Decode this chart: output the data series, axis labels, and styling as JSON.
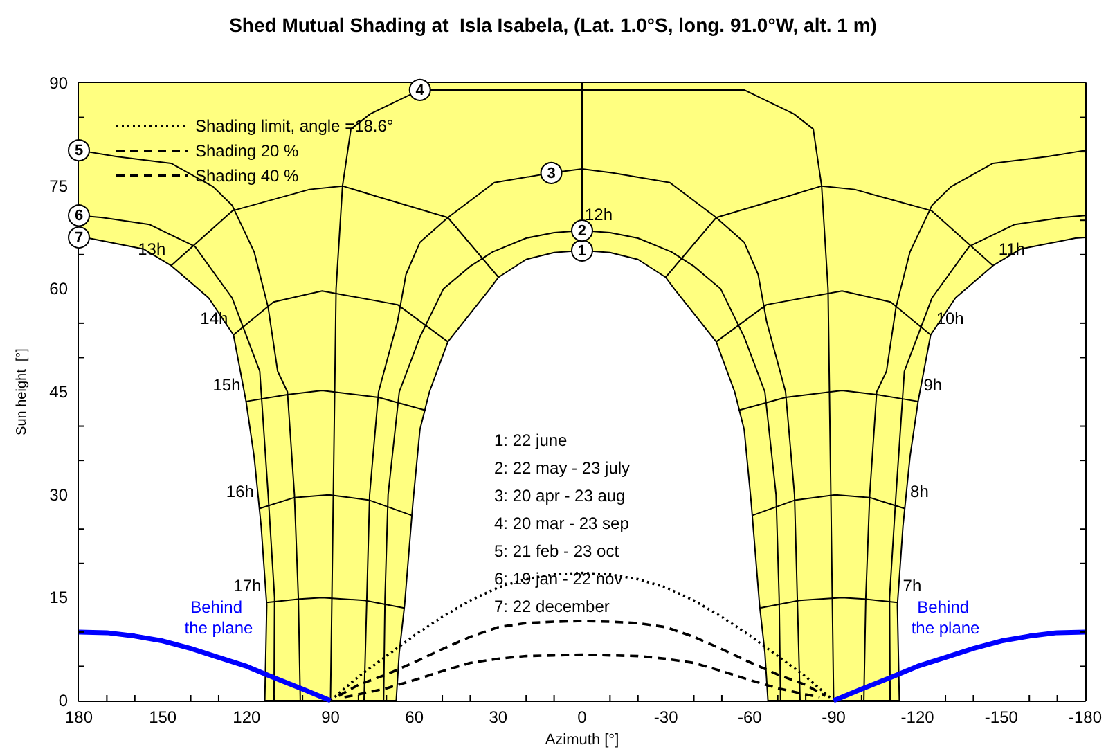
{
  "chart_data": {
    "type": "line",
    "title": "Shed Mutual Shading at  Isla Isabela, (Lat. 1.0°S, long. 91.0°W, alt. 1 m)",
    "xlabel": "Azimuth [°]",
    "ylabel": "Sun height  [°]",
    "color": "#000000",
    "xlim": [
      180,
      -180
    ],
    "ylim": [
      0,
      90
    ],
    "stacked": true,
    "xticks": [
      180,
      {
        "value": 170,
        "label": null
      },
      {
        "value": 160,
        "label": null
      },
      150,
      {
        "value": 140,
        "label": null
      },
      {
        "value": 130,
        "label": null
      },
      120,
      {
        "value": 110,
        "label": null
      },
      {
        "value": 100,
        "label": null
      },
      90,
      {
        "value": 80,
        "label": null
      },
      {
        "value": 70,
        "label": null
      },
      60,
      {
        "value": 50,
        "label": null
      },
      {
        "value": 40,
        "label": null
      },
      30,
      {
        "value": 20,
        "label": null
      },
      {
        "value": 10,
        "label": null
      },
      0,
      {
        "value": -10,
        "label": null
      },
      {
        "value": -20,
        "label": null
      },
      -30,
      {
        "value": -40,
        "label": null
      },
      {
        "value": -50,
        "label": null
      },
      -60,
      {
        "value": -70,
        "label": null
      },
      {
        "value": -80,
        "label": null
      },
      -90,
      {
        "value": -100,
        "label": null
      },
      {
        "value": -110,
        "label": null
      },
      -120,
      {
        "value": -130,
        "label": null
      },
      {
        "value": -140,
        "label": null
      },
      -150,
      {
        "value": -160,
        "label": null
      },
      {
        "value": -170,
        "label": null
      },
      -180
    ],
    "yticks": [
      0,
      {
        "value": 5,
        "label": null
      },
      {
        "value": 10,
        "label": null
      },
      15,
      {
        "value": 20,
        "label": null
      },
      {
        "value": 25,
        "label": null
      },
      30,
      {
        "value": 35,
        "label": null
      },
      {
        "value": 40,
        "label": null
      },
      45,
      {
        "value": 50,
        "label": null
      },
      {
        "value": 55,
        "label": null
      },
      60,
      {
        "value": 65,
        "label": null
      },
      {
        "value": 70,
        "label": null
      },
      75,
      {
        "value": 80,
        "label": null
      },
      {
        "value": 85,
        "label": null
      },
      90
    ],
    "legend": "top left",
    "series": [
      {
        "type": "area",
        "color": "#ffffff",
        "x": [
          180,
          176.5,
          156.8,
          147,
          133.6,
          124.7,
          120.2,
          117.3,
          114.8,
          112.8,
          113.5,
          66.5,
          65.4,
          63.5,
          60.5,
          58,
          54.6,
          48,
          33,
          29.9,
          20,
          10,
          0,
          -10,
          -20,
          -29.9,
          -33,
          -48,
          -54.6,
          -58,
          -60.5,
          -63.5,
          -65.4,
          -66.5,
          -113.5,
          -112.8,
          -114.8,
          -117.3,
          -120.2,
          -124.7,
          -133.6,
          -147,
          -156.8,
          -176.5,
          -180
        ],
        "values": [
          67.5,
          67.4,
          65.8,
          63.4,
          58.7,
          53.3,
          43.6,
          35.5,
          25.4,
          13.9,
          0,
          0,
          7,
          13.9,
          28.9,
          39.5,
          45,
          52.3,
          60,
          61.7,
          64.3,
          65.3,
          65.6,
          65.3,
          64.3,
          61.7,
          60,
          52.3,
          45,
          39.5,
          28.9,
          13.9,
          7,
          0,
          0,
          13.9,
          25.4,
          35.5,
          43.6,
          53.3,
          58.7,
          63.4,
          65.8,
          67.4,
          67.5
        ]
      },
      {
        "type": "area",
        "color": "#ffff80",
        "x": [
          180,
          176.5,
          156.8,
          147,
          133.6,
          124.7,
          120.2,
          117.3,
          114.8,
          112.8,
          113.5,
          66.5,
          65.4,
          63.5,
          60.5,
          58,
          54.6,
          48,
          33,
          29.9,
          20,
          10,
          0,
          -10,
          -20,
          -29.9,
          -33,
          -48,
          -54.6,
          -58,
          -60.5,
          -63.5,
          -65.4,
          -66.5,
          -113.5,
          -112.8,
          -114.8,
          -117.3,
          -120.2,
          -124.7,
          -133.6,
          -147,
          -156.8,
          -176.5,
          -180
        ],
        "values": [
          22.5,
          22.6,
          24.2,
          26.6,
          31.3,
          36.7,
          46.4,
          54.5,
          64.6,
          76.1,
          90,
          90,
          83,
          76.1,
          61.1,
          50.5,
          45,
          37.7,
          30,
          28.3,
          25.7,
          24.7,
          24.4,
          24.7,
          25.7,
          28.3,
          30,
          37.7,
          45,
          50.5,
          61.1,
          76.1,
          83,
          90,
          90,
          76.1,
          64.6,
          54.5,
          46.4,
          36.7,
          31.3,
          26.6,
          24.2,
          22.6,
          22.5
        ]
      },
      {
        "x": [
          71,
          70.5,
          69.4,
          65.4,
          58,
          49.6,
          40,
          32,
          20,
          10,
          0,
          -10,
          -20,
          -32,
          -40,
          -49.6,
          -58,
          -65.4,
          -69.4,
          -70.5,
          -71
        ],
        "values": [
          0,
          15,
          30,
          45,
          53,
          60,
          63.3,
          65.4,
          67.4,
          68.2,
          68.5,
          68.2,
          67.4,
          65.4,
          63.3,
          60,
          53,
          45,
          30,
          15,
          0
        ]
      },
      {
        "x": [
          78,
          77,
          76,
          72.8,
          66,
          63,
          58,
          48,
          31.4,
          11,
          0,
          -11,
          -31.4,
          -48,
          -58,
          -63,
          -66,
          -72.8,
          -76,
          -77,
          -78
        ],
        "values": [
          0,
          15,
          30,
          45,
          55.3,
          62.1,
          66.8,
          70.4,
          75.5,
          76.9,
          77.5,
          76.9,
          75.5,
          70.4,
          66.8,
          62.1,
          55.3,
          45,
          30,
          15,
          0
        ]
      },
      {
        "x": [
          90,
          89,
          88,
          85.7,
          82.7,
          75.8,
          58,
          0,
          -58,
          -75.8,
          -82.7,
          -85.7,
          -88,
          -89,
          -90
        ],
        "values": [
          0,
          30,
          60,
          75,
          83.3,
          85.5,
          89,
          89,
          89,
          85.5,
          83.3,
          75,
          60,
          30,
          0
        ]
      },
      {
        "x": [
          180,
          166.7,
          147,
          132,
          125.2,
          117.3,
          112.3,
          108.9,
          105.4,
          102.9,
          101.5,
          100.8
        ],
        "values": [
          80.2,
          79.3,
          78.3,
          74.9,
          72.2,
          65.4,
          57.3,
          48,
          45,
          30,
          15,
          0
        ]
      },
      {
        "x": [
          -100.8,
          -101.5,
          -102.9,
          -105.4,
          -108.9,
          -112.3,
          -117.3,
          -125.2,
          -132,
          -147,
          -166.7,
          -180
        ],
        "values": [
          0,
          15,
          30,
          45,
          48,
          57.3,
          65.4,
          72.2,
          74.9,
          78.3,
          79.3,
          80.2
        ]
      },
      {
        "x": [
          180,
          171.6,
          154.8,
          138.5,
          125.2,
          115.3,
          114.8,
          112.3,
          110,
          110.2
        ],
        "values": [
          70.7,
          70.4,
          69.4,
          66.2,
          58.7,
          48,
          45,
          30,
          15,
          0
        ]
      },
      {
        "x": [
          -110.2,
          -110,
          -112.3,
          -114.8,
          -115.3,
          -125.2,
          -138.5,
          -154.8,
          -171.6,
          -180
        ],
        "values": [
          0,
          15,
          30,
          45,
          48,
          58.7,
          66.2,
          69.4,
          70.4,
          70.7
        ]
      },
      {
        "name": "12h",
        "x": [
          0,
          0
        ],
        "values": [
          65.6,
          90
        ]
      },
      {
        "name": "13h",
        "x": [
          147,
          125,
          97.5,
          85.7,
          72.8,
          48,
          29.9
        ],
        "values": [
          63.4,
          71.4,
          74.5,
          75,
          73.4,
          70.4,
          61.7
        ]
      },
      {
        "name": "14h",
        "x": [
          124.7,
          110.4,
          93,
          66,
          48
        ],
        "values": [
          53.3,
          58.1,
          59.7,
          57.7,
          52.3
        ]
      },
      {
        "name": "15h",
        "x": [
          120.2,
          105.4,
          93,
          72.8,
          56
        ],
        "values": [
          43.6,
          44.6,
          45.2,
          44.2,
          42.3
        ]
      },
      {
        "name": "16h",
        "x": [
          115.4,
          102.9,
          90.6,
          76,
          61
        ],
        "values": [
          28,
          29.6,
          30,
          29.2,
          27
        ]
      },
      {
        "name": "17h",
        "x": [
          112.8,
          101,
          93,
          77.8,
          63.6
        ],
        "values": [
          14.3,
          14.8,
          15,
          14.6,
          13.5
        ]
      },
      {
        "name": "11h",
        "x": [
          -147,
          -125,
          -97.5,
          -85.7,
          -72.8,
          -48,
          -29.9
        ],
        "values": [
          63.4,
          71.4,
          74.5,
          75,
          73.4,
          70.4,
          61.7
        ]
      },
      {
        "name": "10h",
        "x": [
          -124.7,
          -110.4,
          -93,
          -66,
          -48
        ],
        "values": [
          53.3,
          58.1,
          59.7,
          57.7,
          52.3
        ]
      },
      {
        "name": "9h",
        "x": [
          -120.2,
          -105.4,
          -93,
          -72.8,
          -56
        ],
        "values": [
          43.6,
          44.6,
          45.2,
          44.2,
          42.3
        ]
      },
      {
        "name": "8h",
        "x": [
          -115.4,
          -102.9,
          -90.6,
          -76,
          -61
        ],
        "values": [
          28,
          29.6,
          30,
          29.2,
          27
        ]
      },
      {
        "name": "7h",
        "x": [
          -112.8,
          -101,
          -93,
          -77.8,
          -63.6
        ],
        "values": [
          14.3,
          14.8,
          15,
          14.6,
          13.5
        ]
      },
      {
        "name": "Shading limit, angle =18.6°",
        "line_style": "dotted",
        "x": [
          90,
          80,
          70,
          60,
          50,
          40,
          30,
          20,
          10,
          0,
          -10,
          -20,
          -30,
          -40,
          -50,
          -60,
          -70,
          -80,
          -90
        ],
        "values": [
          0,
          3.5,
          6.5,
          9.5,
          12.2,
          14.6,
          16.5,
          17.7,
          18.4,
          18.6,
          18.4,
          17.7,
          16.5,
          14.6,
          12.2,
          9.5,
          6.5,
          3.5,
          0
        ]
      },
      {
        "name": "Shading 20 %",
        "line_style": "dashed",
        "x": [
          87,
          80,
          70,
          60,
          50,
          40,
          30,
          20,
          10,
          0,
          -10,
          -20,
          -30,
          -40,
          -50,
          -60,
          -70,
          -80,
          -87
        ],
        "values": [
          0.7,
          2.3,
          3.8,
          5.6,
          7.5,
          9.3,
          10.7,
          11.3,
          11.5,
          11.6,
          11.5,
          11.3,
          10.7,
          9.3,
          7.5,
          5.6,
          3.8,
          2.3,
          0.7
        ]
      },
      {
        "name": "Shading 40 %",
        "line_style": "dashed",
        "x": [
          85,
          80,
          70,
          60,
          50,
          40,
          30,
          20,
          10,
          0,
          -10,
          -20,
          -30,
          -40,
          -50,
          -60,
          -70,
          -80,
          -85
        ],
        "values": [
          0.5,
          0.9,
          1.8,
          3,
          4.3,
          5.5,
          6.1,
          6.5,
          6.6,
          6.7,
          6.6,
          6.5,
          6.1,
          5.5,
          4.3,
          3,
          1.8,
          0.9,
          0.5
        ]
      },
      {
        "color": "#0000ff",
        "x": [
          180,
          170,
          160,
          150,
          140,
          130,
          120,
          110,
          100,
          90
        ],
        "values": [
          10,
          9.9,
          9.4,
          8.7,
          7.6,
          6.3,
          5,
          3.3,
          1.7,
          0
        ]
      },
      {
        "color": "#0000ff",
        "x": [
          -90,
          -100,
          -110,
          -120,
          -130,
          -140,
          -150,
          -160,
          -170,
          -180
        ],
        "values": [
          0,
          1.7,
          3.3,
          5,
          6.3,
          7.6,
          8.7,
          9.4,
          9.9,
          10
        ]
      }
    ],
    "annotations": [
      "1: 22 june",
      "2: 22 may - 23 july",
      "3: 20 apr - 23 aug",
      "4: 20 mar - 23 sep",
      "5: 21 feb - 23 oct",
      "6: 19 jan - 22 nov",
      "7: 22 december",
      {
        "text": "1",
        "x": 0,
        "y": 65.6
      },
      {
        "text": "2",
        "x": 0,
        "y": 68.5
      },
      {
        "text": "3",
        "x": 11,
        "y": 76.9
      },
      {
        "text": "4",
        "x": 58,
        "y": 89
      },
      {
        "text": "5",
        "x": 180,
        "y": 80.2
      },
      {
        "text": "6",
        "x": 180,
        "y": 70.7
      },
      {
        "text": "7",
        "x": 180,
        "y": 67.5
      },
      {
        "text": "Behind the plane",
        "x": 130,
        "y": 6.3
      },
      {
        "text": "Behind the plane",
        "x": -130,
        "y": 6.3
      }
    ]
  }
}
